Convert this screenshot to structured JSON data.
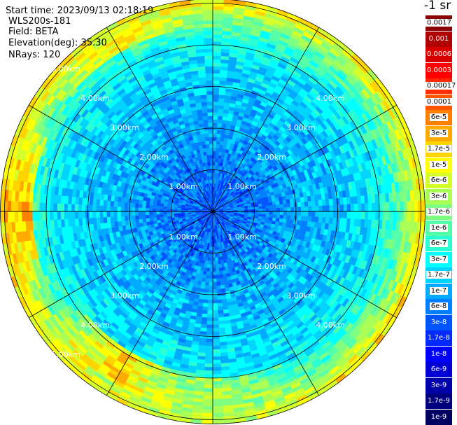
{
  "header": {
    "start_time": "Start time: 2023/09/13 02:18:19",
    "instrument": "WLS200s-181",
    "field": "Field: BETA",
    "elevation": "Elevation(deg): 35.30",
    "nrays": "NRays: 120"
  },
  "colorbar": {
    "unit_label": "-1 sr",
    "labels": [
      "0.0017",
      "0.001",
      "0.0006",
      "0.0003",
      "0.00017",
      "0.0001",
      "6e-5",
      "3e-5",
      "1.7e-5",
      "1e-5",
      "6e-6",
      "3e-6",
      "1.7e-6",
      "1e-6",
      "6e-7",
      "3e-7",
      "1.7e-7",
      "1e-7",
      "6e-8",
      "3e-8",
      "1.7e-8",
      "1e-8",
      "6e-9",
      "3e-9",
      "1.7e-9",
      "1e-9"
    ],
    "colors": [
      "#8b0000",
      "#b00000",
      "#d80000",
      "#ff0000",
      "#ff2a00",
      "#ff5500",
      "#ff7f00",
      "#ffaa00",
      "#ffd400",
      "#ffff00",
      "#d4ff2a",
      "#aaff55",
      "#7fff7f",
      "#55ffaa",
      "#2affd4",
      "#00ffff",
      "#00d4ff",
      "#00aaff",
      "#007fff",
      "#0055ff",
      "#002aff",
      "#0000ff",
      "#0000d4",
      "#0000aa",
      "#00007f",
      "#000060"
    ]
  },
  "chart_data": {
    "type": "heatmap",
    "projection": "polar (PPI scan)",
    "field": "BETA",
    "elevation_deg": 35.3,
    "n_rays": 120,
    "range_rings_km": [
      1,
      2,
      3,
      4,
      5
    ],
    "ring_labels": [
      "1.00km",
      "2.00km",
      "3.00km",
      "4.00km",
      "5.00km"
    ],
    "max_range_km": 5.1,
    "spokes_deg": [
      0,
      30,
      60,
      90,
      120,
      150,
      180,
      210,
      240,
      270,
      300,
      330
    ],
    "color_scale": "log",
    "value_range": [
      1e-09,
      0.0017
    ],
    "radial_profile": [
      {
        "range_km": 0.0,
        "beta": 3e-08
      },
      {
        "range_km": 1.0,
        "beta": 5e-08
      },
      {
        "range_km": 2.0,
        "beta": 1e-07
      },
      {
        "range_km": 3.0,
        "beta": 1.5e-07
      },
      {
        "range_km": 4.0,
        "beta": 3e-07
      },
      {
        "range_km": 4.5,
        "beta": 1e-06
      },
      {
        "range_km": 5.0,
        "beta": 1e-05
      }
    ],
    "features": [
      {
        "sector": "west",
        "range_km": [
          4.3,
          5.0
        ],
        "beta": 3e-05
      },
      {
        "sector": "north-northwest",
        "range_km": [
          4.4,
          5.1
        ],
        "beta": 1e-05
      },
      {
        "sector": "south-southwest",
        "range_km": [
          3.9,
          4.8
        ],
        "beta": 2e-05
      },
      {
        "sector": "south",
        "range_km": [
          4.0,
          5.1
        ],
        "beta": 3e-06
      }
    ]
  }
}
